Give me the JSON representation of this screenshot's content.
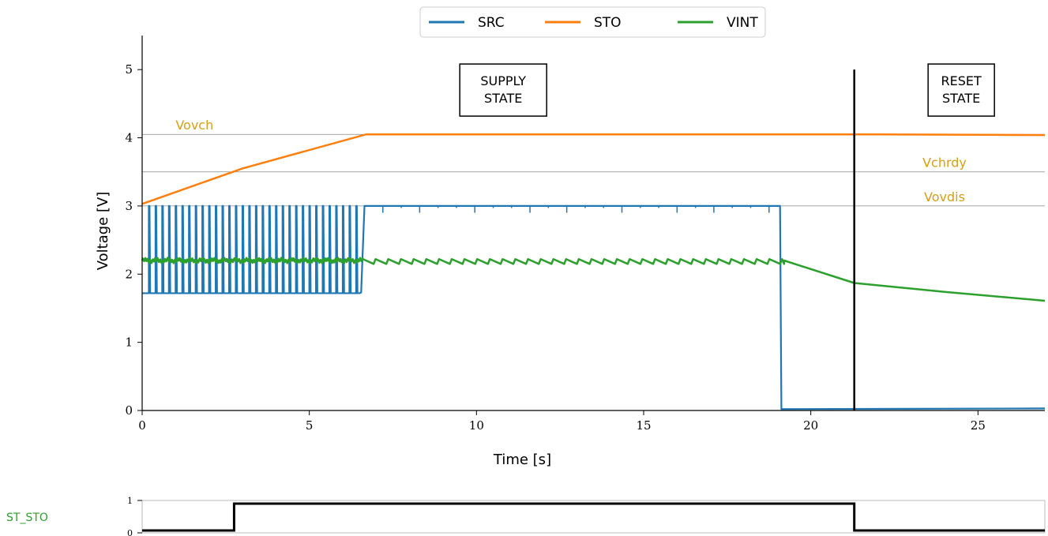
{
  "chart_data": [
    {
      "type": "line",
      "xlabel": "Time [s]",
      "ylabel": "Voltage [V]",
      "xlim": [
        0,
        27
      ],
      "ylim": [
        0,
        5.5
      ],
      "x_ticks": [
        0,
        5,
        10,
        15,
        20,
        25
      ],
      "y_ticks": [
        0,
        1,
        2,
        3,
        4,
        5
      ],
      "grid": false,
      "legend": {
        "placement": "top-center",
        "entries": [
          "SRC",
          "STO",
          "VINT"
        ]
      },
      "thresholds": [
        {
          "label": "Vovch",
          "value": 4.05
        },
        {
          "label": "Vchrdy",
          "value": 3.5
        },
        {
          "label": "Vovdis",
          "value": 3.0
        }
      ],
      "annotations": [
        {
          "lines": [
            "SUPPLY",
            "STATE"
          ],
          "x": 10.8,
          "y": 4.7
        },
        {
          "lines": [
            "RESET",
            "STATE"
          ],
          "x": 24.5,
          "y": 4.7
        }
      ],
      "vertical_marker": {
        "x": 21.3,
        "y_top": 5.0
      },
      "series": [
        {
          "name": "SRC",
          "color": "#1f77b4",
          "pulse_train": {
            "x_start": 0.2,
            "x_end": 6.5,
            "period": 0.2,
            "low": 1.72,
            "high": 3.0
          },
          "points": [
            [
              6.55,
              1.73
            ],
            [
              6.65,
              3.0
            ],
            [
              19.08,
              3.0
            ],
            [
              19.12,
              0.02
            ],
            [
              27,
              0.03
            ]
          ]
        },
        {
          "name": "STO",
          "color": "#ff7f0e",
          "points": [
            [
              0,
              3.03
            ],
            [
              3.0,
              3.55
            ],
            [
              6.7,
              4.05
            ],
            [
              22,
              4.05
            ],
            [
              27,
              4.04
            ]
          ]
        },
        {
          "name": "VINT",
          "color": "#2ca02c",
          "noisy_band": {
            "x_start": 0,
            "x_end": 6.6,
            "center": 2.2,
            "amplitude": 0.025
          },
          "sawtooth": {
            "x_start": 6.6,
            "x_end": 19.2,
            "low": 2.15,
            "high": 2.22,
            "period": 0.38
          },
          "points": [
            [
              19.2,
              2.2
            ],
            [
              21.3,
              1.87
            ],
            [
              24,
              1.74
            ],
            [
              27,
              1.61
            ]
          ]
        }
      ]
    },
    {
      "type": "line",
      "series_label": "ST_STO",
      "xlim": [
        0,
        27
      ],
      "ylim": [
        0,
        1
      ],
      "y_ticks": [
        0,
        1
      ],
      "series": [
        {
          "name": "ST_STO",
          "color": "#000000",
          "points": [
            [
              0,
              0
            ],
            [
              2.75,
              0
            ],
            [
              2.75,
              1
            ],
            [
              21.3,
              1
            ],
            [
              21.3,
              0
            ],
            [
              27,
              0
            ]
          ]
        }
      ]
    }
  ],
  "colors": {
    "threshold_line": "#888888",
    "threshold_text": "#d4a017",
    "st_label": "#2ca02c",
    "frame": "#bbbbbb"
  }
}
